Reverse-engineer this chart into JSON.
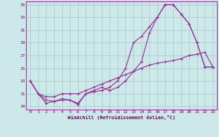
{
  "xlabel": "Windchill (Refroidissement éolien,°C)",
  "bg_color": "#cce8e8",
  "grid_color": "#aacccc",
  "line_color": "#993399",
  "xlim": [
    -0.5,
    23.5
  ],
  "ylim": [
    18.5,
    35.5
  ],
  "xticks": [
    0,
    1,
    2,
    3,
    4,
    5,
    6,
    7,
    8,
    9,
    10,
    11,
    12,
    13,
    14,
    15,
    16,
    17,
    18,
    19,
    20,
    21,
    22,
    23
  ],
  "yticks": [
    19,
    21,
    23,
    25,
    27,
    29,
    31,
    33,
    35
  ],
  "line1_x": [
    0,
    1,
    2,
    3,
    4,
    5,
    6,
    7,
    8,
    9,
    10,
    11,
    12,
    13,
    14,
    15,
    16,
    17,
    18,
    19,
    20,
    21,
    22,
    23
  ],
  "line1_y": [
    23,
    21,
    20,
    19.8,
    20,
    20,
    19.5,
    21,
    21.3,
    21.5,
    22,
    23,
    25,
    29,
    30,
    31.5,
    33,
    35,
    35,
    33.5,
    32,
    29,
    25.2,
    25.2
  ],
  "line2_x": [
    0,
    1,
    2,
    3,
    4,
    5,
    6,
    7,
    8,
    9,
    10,
    11,
    12,
    13,
    14,
    15,
    16,
    17,
    18,
    19,
    20,
    21,
    22,
    23
  ],
  "line2_y": [
    23,
    21,
    19.5,
    19.8,
    20.2,
    20,
    19.3,
    21,
    21.5,
    22,
    21.5,
    22,
    23,
    24.5,
    26,
    30.5,
    33,
    35,
    35,
    33.5,
    32,
    29,
    25.2,
    25.2
  ],
  "line3_x": [
    0,
    1,
    2,
    3,
    4,
    5,
    6,
    7,
    8,
    9,
    10,
    11,
    12,
    13,
    14,
    15,
    16,
    17,
    18,
    19,
    20,
    21,
    22,
    23
  ],
  "line3_y": [
    23,
    21,
    20.5,
    20.5,
    21,
    21,
    21,
    21.5,
    22,
    22.5,
    23,
    23.5,
    24,
    24.5,
    25,
    25.5,
    25.8,
    26,
    26.2,
    26.5,
    27,
    27.2,
    27.5,
    25.2
  ]
}
